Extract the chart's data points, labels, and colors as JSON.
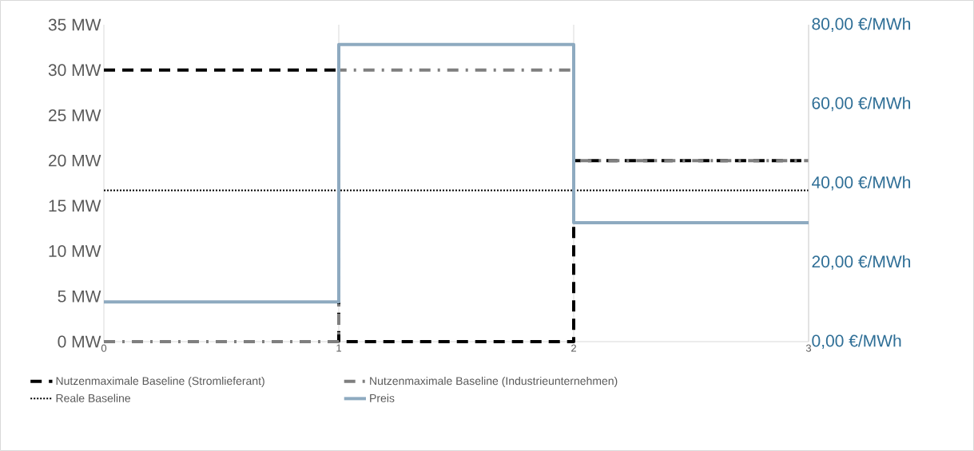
{
  "chart_data": {
    "type": "step",
    "xlim": [
      0,
      3
    ],
    "xticks": [
      0,
      1,
      2,
      3
    ],
    "ylim": [
      0,
      35
    ],
    "yticks": [
      {
        "value": 0,
        "label": "0 MW"
      },
      {
        "value": 5,
        "label": "5 MW"
      },
      {
        "value": 10,
        "label": "10 MW"
      },
      {
        "value": 15,
        "label": "15 MW"
      },
      {
        "value": 20,
        "label": "20 MW"
      },
      {
        "value": 25,
        "label": "25 MW"
      },
      {
        "value": 30,
        "label": "30 MW"
      },
      {
        "value": 35,
        "label": "35 MW"
      }
    ],
    "y2lim": [
      0,
      80
    ],
    "y2ticks": [
      {
        "value": 0,
        "label": "0,00 €/MWh"
      },
      {
        "value": 20,
        "label": "20,00 €/MWh"
      },
      {
        "value": 40,
        "label": "40,00 €/MWh"
      },
      {
        "value": 60,
        "label": "60,00 €/MWh"
      },
      {
        "value": 80,
        "label": "80,00 €/MWh"
      }
    ],
    "grid": "x",
    "legend": "bottom",
    "series": [
      {
        "name": "Nutzenmaximale Baseline (Stromlieferant)",
        "color": "#000000",
        "line_style": "dashed",
        "x": [
          0,
          1,
          2,
          3
        ],
        "values": [
          30,
          0,
          20,
          20
        ]
      },
      {
        "name": "Nutzenmaximale Baseline (Industrieunternehmen)",
        "color": "#7f7f7f",
        "line_style": "dashdot",
        "x": [
          0,
          1,
          2,
          3
        ],
        "values": [
          0,
          30,
          20,
          20
        ]
      },
      {
        "name": "Reale Baseline",
        "type": "line",
        "color": "#000000",
        "line_style": "dotted",
        "x": [
          0,
          3
        ],
        "values": [
          16.7,
          16.7
        ]
      },
      {
        "name": "Preis",
        "color": "#8eaac0",
        "axis": "y2",
        "line_style": "solid",
        "x": [
          0,
          1,
          2,
          3
        ],
        "values": [
          10,
          75,
          30,
          30
        ]
      }
    ]
  }
}
